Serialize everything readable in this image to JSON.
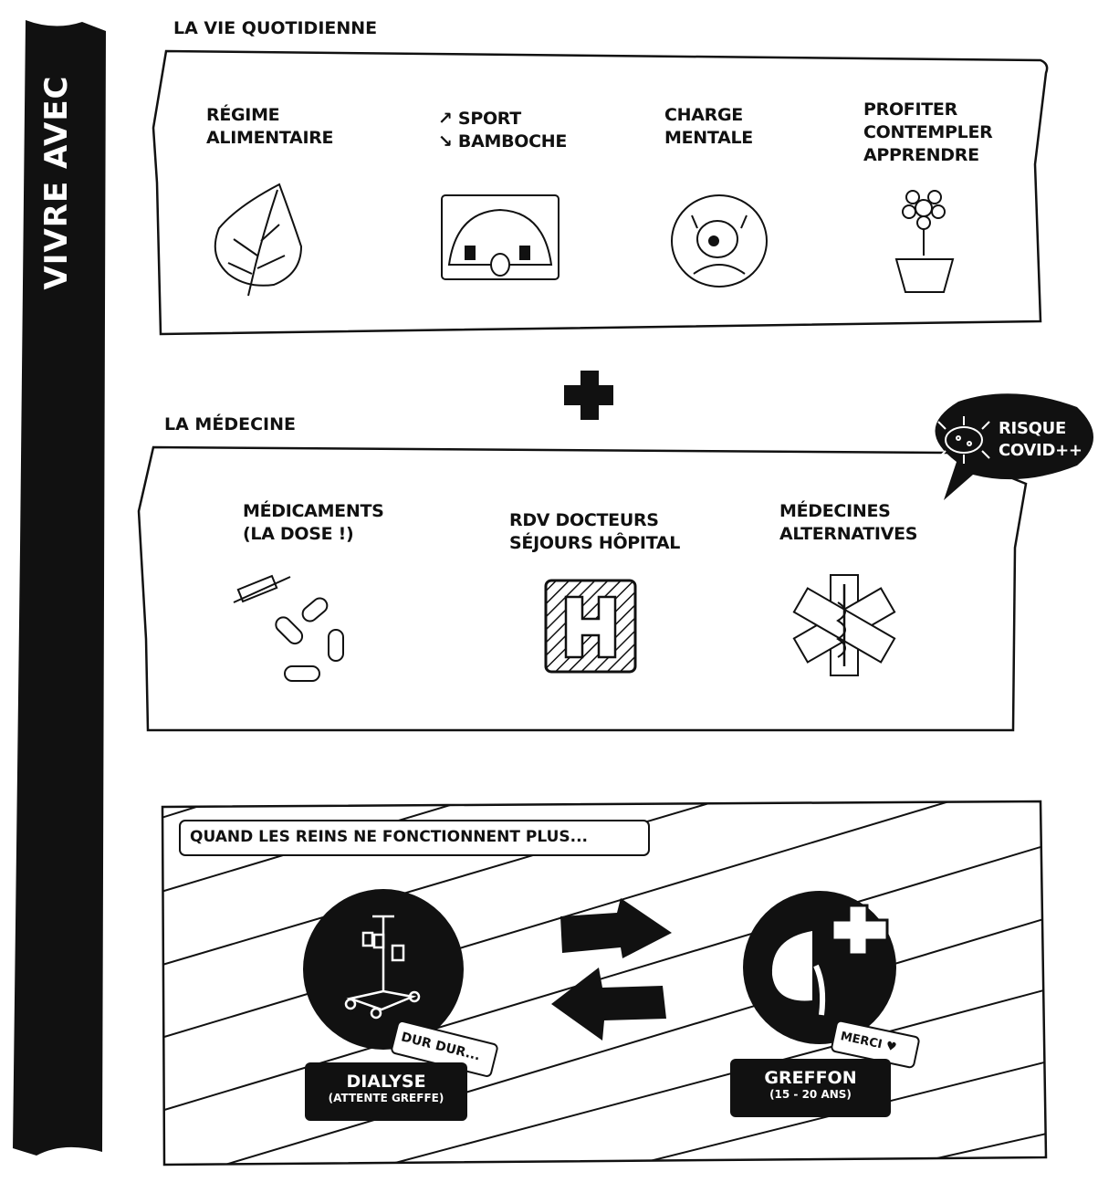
{
  "sidebar": {
    "title": "VIVRE AVEC"
  },
  "daily_life": {
    "title": "LA VIE QUOTIDIENNE",
    "items": [
      {
        "line1": "RÉGIME",
        "line2": "ALIMENTAIRE",
        "line3": "",
        "icon": "leaf-icon"
      },
      {
        "line1": "↗ SPORT",
        "line2": "↘ BAMBOCHE",
        "line3": "",
        "icon": "fuel-gauge-icon"
      },
      {
        "line1": "CHARGE",
        "line2": "MENTALE",
        "line3": "",
        "icon": "stressed-person-icon"
      },
      {
        "line1": "PROFITER",
        "line2": "CONTEMPLER",
        "line3": "APPRENDRE",
        "icon": "flower-pot-icon"
      }
    ]
  },
  "medicine": {
    "title": "LA MÉDECINE",
    "items": [
      {
        "line1": "MÉDICAMENTS",
        "line2": "(LA DOSE !)",
        "icon": "pills-syringe-icon"
      },
      {
        "line1": "RDV DOCTEURS",
        "line2": "SÉJOURS HÔPITAL",
        "icon": "hospital-icon"
      },
      {
        "line1": "MÉDECINES",
        "line2": "ALTERNATIVES",
        "icon": "star-of-life-icon"
      }
    ],
    "bubble": {
      "line1": "RISQUE",
      "line2": "COVID++",
      "icon": "virus-icon"
    }
  },
  "kidneys": {
    "title": "QUAND LES REINS NE FONCTIONNENT PLUS...",
    "dialysis": {
      "tag": "DUR DUR...",
      "label": "DIALYSE",
      "sub": "(ATTENTE GREFFE)",
      "icon": "iv-stand-icon"
    },
    "transplant": {
      "tag": "MERCI ♥",
      "label": "GREFFON",
      "sub": "(15 - 20 ANS)",
      "icon": "kidney-cross-icon"
    },
    "arrows_icon": "swap-arrows-icon"
  },
  "colors": {
    "ink": "#111111",
    "paper": "#ffffff"
  }
}
